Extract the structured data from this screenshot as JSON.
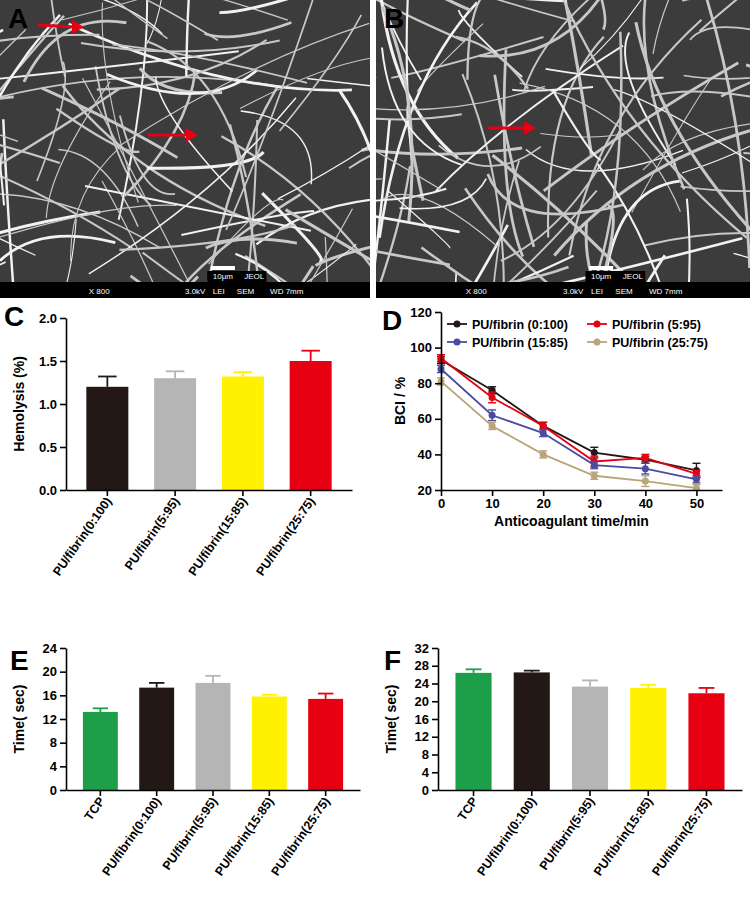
{
  "chart_data": [
    {
      "type": "image",
      "title": "A",
      "annotations": [
        "10μm",
        "JEOL",
        "X 800",
        "3.0kV",
        "LEI",
        "SEM",
        "WD 7mm"
      ]
    },
    {
      "type": "image",
      "title": "B",
      "annotations": [
        "10μm",
        "JEOL",
        "X 800",
        "3.0kV",
        "LEI",
        "SEM",
        "WD 7mm"
      ]
    },
    {
      "type": "bar",
      "title": "C",
      "y_label": "Hemolysis (%)",
      "categories": [
        "PU/fibrin(0:100)",
        "PU/fibrin(5:95)",
        "PU/fibrin(15:85)",
        "PU/fibrin(25:75)"
      ],
      "values": [
        1.2,
        1.3,
        1.32,
        1.5
      ],
      "errors": [
        0.12,
        0.08,
        0.05,
        0.12
      ],
      "colors": [
        "#231815",
        "#b5b5b6",
        "#fff100",
        "#e60012"
      ],
      "ylim": [
        0,
        2.0
      ],
      "yticks": [
        {
          "value": 0,
          "label": "0.0"
        },
        0.5,
        {
          "value": 1,
          "label": "1.0"
        },
        1.5,
        {
          "value": 2,
          "label": "2.0"
        }
      ]
    },
    {
      "type": "line",
      "title": "D",
      "x_label": "Anticoagulant time/min",
      "y_label": "BCI / %",
      "x": [
        0,
        10,
        20,
        30,
        40,
        50
      ],
      "xlim": [
        0,
        55
      ],
      "xticks": [
        0,
        10,
        20,
        30,
        40,
        50
      ],
      "ylim": [
        20,
        120
      ],
      "yticks": [
        20,
        40,
        60,
        80,
        100,
        120
      ],
      "legend": "top",
      "marker": "circle",
      "series": [
        {
          "name": "PU/fibrin (0:100)",
          "color": "#231815",
          "values": [
            93,
            76,
            56,
            41,
            37,
            31
          ],
          "errors": [
            2,
            2,
            2,
            3,
            2,
            4
          ]
        },
        {
          "name": "PU/fibrin (5:95)",
          "color": "#e60012",
          "values": [
            94,
            72,
            56,
            36,
            38,
            29
          ],
          "errors": [
            2,
            3,
            2,
            3,
            2,
            2
          ]
        },
        {
          "name": "PU/fibrin (15:85)",
          "color": "#4b4ba0",
          "values": [
            88,
            62,
            52,
            34,
            32,
            26
          ],
          "errors": [
            2,
            3,
            2,
            2,
            3,
            2
          ]
        },
        {
          "name": "PU/fibrin (25:75)",
          "color": "#b9a57a",
          "values": [
            81,
            56,
            40,
            28,
            25,
            21
          ],
          "errors": [
            2,
            2,
            2,
            2,
            3,
            2
          ]
        }
      ]
    },
    {
      "type": "bar",
      "title": "E",
      "y_label": "Time( sec)",
      "categories": [
        "TCP",
        "PU/fibrin(0:100)",
        "PU/fibrin(5:95)",
        "PU/fibrin(15:85)",
        "PU/fibrin(25:75)"
      ],
      "values": [
        13.2,
        17.3,
        18.1,
        15.8,
        15.4
      ],
      "errors": [
        0.6,
        0.8,
        1.2,
        0.3,
        0.9
      ],
      "colors": [
        "#1d9e48",
        "#231815",
        "#b5b5b6",
        "#fff100",
        "#e60012"
      ],
      "ylim": [
        0,
        24
      ],
      "yticks": [
        0,
        4,
        8,
        12,
        16,
        20,
        24
      ]
    },
    {
      "type": "bar",
      "title": "F",
      "y_label": "Time( sec)",
      "categories": [
        "TCP",
        "PU/fibrin(0:100)",
        "PU/fibrin(5:95)",
        "PU/fibrin(15:85)",
        "PU/fibrin(25:75)"
      ],
      "values": [
        26.4,
        26.5,
        23.3,
        23.0,
        21.8
      ],
      "errors": [
        0.8,
        0.4,
        1.4,
        0.7,
        1.2
      ],
      "colors": [
        "#1d9e48",
        "#231815",
        "#b5b5b6",
        "#fff100",
        "#e60012"
      ],
      "ylim": [
        0,
        32
      ],
      "yticks": [
        0,
        4,
        8,
        12,
        16,
        20,
        24,
        28,
        32
      ]
    }
  ]
}
